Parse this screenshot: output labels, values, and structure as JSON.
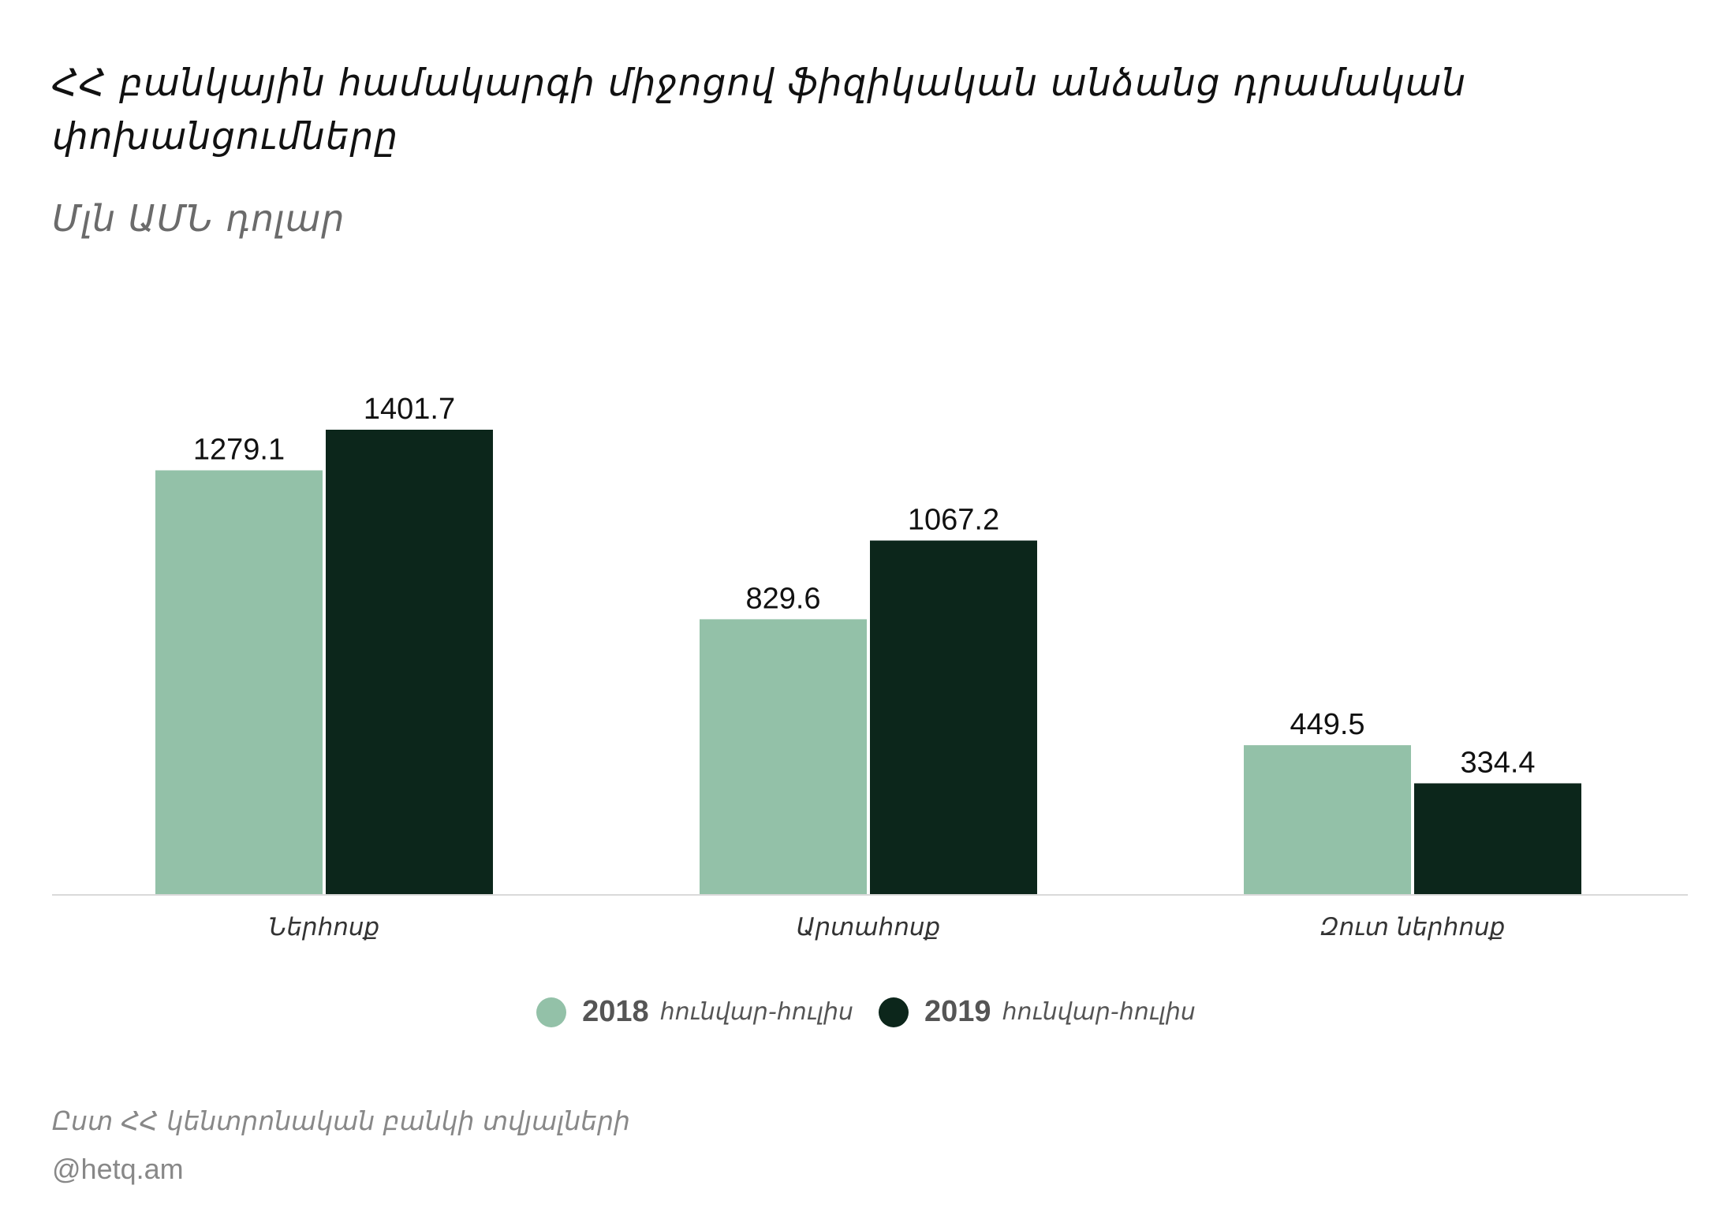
{
  "title": "ՀՀ բանկային համակարգի միջոցով ֆիզիկական անձանց դրամական փոխանցումները",
  "subtitle": "Մլն ԱՄՆ  դոլար",
  "source": "Ըստ ՀՀ կենտրոնական բանկի տվյալների",
  "credit": "@hetq.am",
  "colors": {
    "series_2018": "#93c1a8",
    "series_2019": "#0c261b",
    "axis": "#d9d9d9",
    "value_label": "#111111",
    "category_label": "#333333"
  },
  "legend": [
    {
      "year": "2018",
      "period": "հունվար-հուլիս"
    },
    {
      "year": "2019",
      "period": "հունվար-հուլիս"
    }
  ],
  "chart_data": {
    "type": "bar",
    "categories": [
      "Ներհոսք",
      "Արտահոսք",
      "Զուտ ներհոսք"
    ],
    "series": [
      {
        "name": "2018 հունվար-հուլիս",
        "values": [
          1279.1,
          829.6,
          449.5
        ]
      },
      {
        "name": "2019 հունվար-հուլիս",
        "values": [
          1401.7,
          1067.2,
          334.4
        ]
      }
    ],
    "value_labels": [
      [
        "1279.1",
        "829.6",
        "449.5"
      ],
      [
        "1401.7",
        "1067.2",
        "334.4"
      ]
    ],
    "title": "ՀՀ բանկային համակարգի միջոցով ֆիզիկական անձանց դրամական փոխանցումները",
    "ylabel": "Մլն ԱՄՆ  դոլար",
    "ylim": [
      0,
      1401.7
    ],
    "grid": false,
    "legend_position": "bottom-center"
  }
}
